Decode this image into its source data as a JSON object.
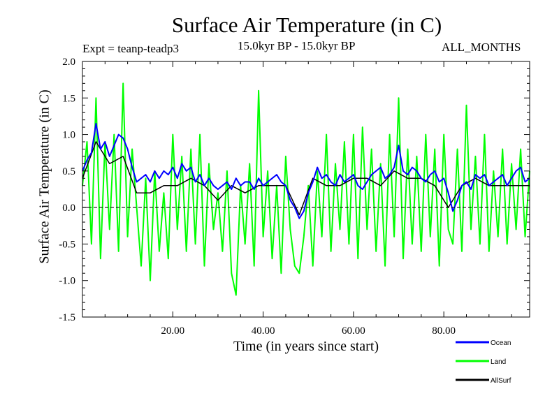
{
  "chart_data": {
    "type": "line",
    "title": "Surface Air Temperature (in C)",
    "subtitle_left": "Expt = teanp-teadp3",
    "subtitle_center": "15.0kyr BP - 15.0kyr BP",
    "subtitle_right": "ALL_MONTHS",
    "xlabel": "Time (in years since start)",
    "ylabel": "Surface Air Temperature (in C)",
    "xlim": [
      0,
      99
    ],
    "ylim": [
      -1.5,
      2.0
    ],
    "xticks": [
      20,
      40,
      60,
      80
    ],
    "xtick_labels": [
      "20.00",
      "40.00",
      "60.00",
      "80.00"
    ],
    "yticks": [
      -1.5,
      -1.0,
      -0.5,
      0.0,
      0.5,
      1.0,
      1.5,
      2.0
    ],
    "ytick_labels": [
      "-1.5",
      "-1.0",
      "-0.5",
      "0.0",
      "0.5",
      "1.0",
      "1.5",
      "2.0"
    ],
    "zero_line": true,
    "legend_position": "bottom-right",
    "series": [
      {
        "name": "Land",
        "color": "#00ff00",
        "x": [
          0,
          1,
          2,
          3,
          4,
          5,
          6,
          7,
          8,
          9,
          10,
          11,
          12,
          13,
          14,
          15,
          16,
          17,
          18,
          19,
          20,
          21,
          22,
          23,
          24,
          25,
          26,
          27,
          28,
          29,
          30,
          31,
          32,
          33,
          34,
          35,
          36,
          37,
          38,
          39,
          40,
          41,
          42,
          43,
          44,
          45,
          46,
          47,
          48,
          49,
          50,
          51,
          52,
          53,
          54,
          55,
          56,
          57,
          58,
          59,
          60,
          61,
          62,
          63,
          64,
          65,
          66,
          67,
          68,
          69,
          70,
          71,
          72,
          73,
          74,
          75,
          76,
          77,
          78,
          79,
          80,
          81,
          82,
          83,
          84,
          85,
          86,
          87,
          88,
          89,
          90,
          91,
          92,
          93,
          94,
          95,
          96,
          97,
          98,
          99
        ],
        "values": [
          0.3,
          0.9,
          -0.5,
          1.5,
          -0.7,
          0.9,
          -0.3,
          1.0,
          -0.6,
          1.7,
          -0.4,
          0.8,
          0.0,
          -0.8,
          0.4,
          -1.0,
          0.5,
          -0.6,
          0.2,
          -0.7,
          1.0,
          -0.3,
          0.7,
          -0.6,
          0.8,
          -0.5,
          1.0,
          -0.8,
          0.6,
          -0.3,
          0.2,
          -0.6,
          0.5,
          -0.9,
          -1.2,
          0.3,
          -0.5,
          0.6,
          -0.8,
          1.6,
          -0.4,
          0.5,
          -0.7,
          0.3,
          -0.9,
          0.7,
          -0.3,
          -0.8,
          -0.9,
          -0.4,
          0.3,
          -0.8,
          0.5,
          -0.4,
          1.0,
          -0.6,
          0.6,
          -0.3,
          0.9,
          -0.5,
          1.0,
          -0.7,
          1.1,
          -0.3,
          0.8,
          -0.6,
          0.6,
          -0.8,
          1.0,
          -0.4,
          1.5,
          -0.7,
          0.8,
          -0.5,
          0.7,
          -0.6,
          1.0,
          -0.4,
          0.8,
          -0.8,
          1.0,
          -0.3,
          -0.5,
          0.8,
          -0.6,
          1.4,
          -0.3,
          0.7,
          -0.5,
          1.0,
          -0.6,
          0.5,
          -0.4,
          0.8,
          -0.5,
          0.6,
          -0.3,
          0.8,
          -0.4,
          0.5
        ]
      },
      {
        "name": "AllSurf",
        "color": "#000000",
        "x": [
          0,
          3,
          6,
          9,
          12,
          15,
          18,
          21,
          24,
          27,
          30,
          33,
          36,
          39,
          42,
          45,
          48,
          51,
          54,
          57,
          60,
          63,
          66,
          69,
          72,
          75,
          78,
          81,
          84,
          87,
          90,
          93,
          96,
          99
        ],
        "values": [
          0.4,
          0.9,
          0.6,
          0.7,
          0.2,
          0.2,
          0.3,
          0.3,
          0.4,
          0.3,
          0.1,
          0.3,
          0.2,
          0.3,
          0.3,
          0.3,
          -0.1,
          0.4,
          0.3,
          0.3,
          0.4,
          0.4,
          0.3,
          0.5,
          0.4,
          0.4,
          0.3,
          0.0,
          0.3,
          0.4,
          0.3,
          0.3,
          0.3,
          0.3
        ]
      },
      {
        "name": "Ocean",
        "color": "#0000ff",
        "x": [
          0,
          1,
          2,
          3,
          4,
          5,
          6,
          7,
          8,
          9,
          10,
          11,
          12,
          13,
          14,
          15,
          16,
          17,
          18,
          19,
          20,
          21,
          22,
          23,
          24,
          25,
          26,
          27,
          28,
          29,
          30,
          31,
          32,
          33,
          34,
          35,
          36,
          37,
          38,
          39,
          40,
          41,
          42,
          43,
          44,
          45,
          46,
          47,
          48,
          49,
          50,
          51,
          52,
          53,
          54,
          55,
          56,
          57,
          58,
          59,
          60,
          61,
          62,
          63,
          64,
          65,
          66,
          67,
          68,
          69,
          70,
          71,
          72,
          73,
          74,
          75,
          76,
          77,
          78,
          79,
          80,
          81,
          82,
          83,
          84,
          85,
          86,
          87,
          88,
          89,
          90,
          91,
          92,
          93,
          94,
          95,
          96,
          97,
          98,
          99
        ],
        "values": [
          0.5,
          0.65,
          0.75,
          1.15,
          0.8,
          0.9,
          0.7,
          0.85,
          1.0,
          0.95,
          0.8,
          0.55,
          0.35,
          0.4,
          0.45,
          0.35,
          0.5,
          0.4,
          0.5,
          0.45,
          0.55,
          0.4,
          0.6,
          0.5,
          0.55,
          0.35,
          0.45,
          0.3,
          0.4,
          0.3,
          0.25,
          0.3,
          0.35,
          0.25,
          0.4,
          0.3,
          0.35,
          0.35,
          0.25,
          0.4,
          0.3,
          0.35,
          0.4,
          0.45,
          0.35,
          0.3,
          0.1,
          0.0,
          -0.15,
          -0.05,
          0.2,
          0.35,
          0.55,
          0.4,
          0.45,
          0.35,
          0.3,
          0.45,
          0.35,
          0.4,
          0.45,
          0.3,
          0.25,
          0.35,
          0.45,
          0.5,
          0.55,
          0.4,
          0.45,
          0.55,
          0.85,
          0.5,
          0.45,
          0.55,
          0.5,
          0.4,
          0.35,
          0.45,
          0.5,
          0.35,
          0.4,
          0.2,
          -0.05,
          0.1,
          0.3,
          0.35,
          0.25,
          0.45,
          0.4,
          0.45,
          0.3,
          0.35,
          0.4,
          0.45,
          0.3,
          0.4,
          0.5,
          0.55,
          0.35,
          0.4
        ]
      }
    ]
  }
}
